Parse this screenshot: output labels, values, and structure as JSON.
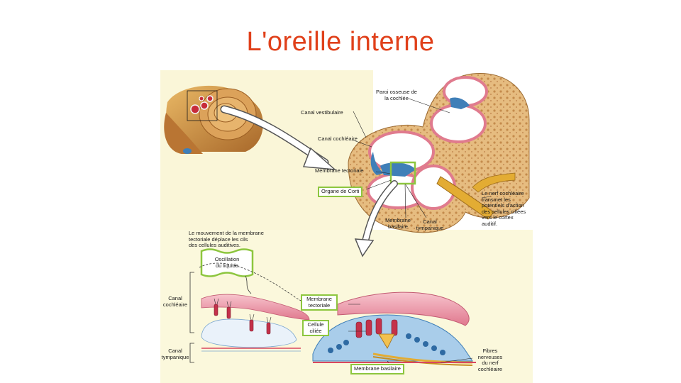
{
  "slide": {
    "title": "L'oreille interne"
  },
  "labels": {
    "paroi_osseuse": "Paroi osseuse de\nla cochlée",
    "canal_vestibulaire": "Canal vestibulaire",
    "canal_cochleaire_top": "Canal cochléaire",
    "membrane_tectoriale_top": "Membrane tectoriale",
    "organe_de_corti": "Organe de Corti",
    "membrane_basilaire_top": "Membrane\nbasilaire",
    "canal_tympanique_top": "Canal\ntympanique",
    "nerf_cochleaire": "Le nerf cochléaire\ntransmet les\npotentiels d'action\ndes cellules ciliées\nvers le cortex\nauditif.",
    "mouvement": "Le mouvement de la membrane\ntectoriale déplace les cils\ndes cellules auditives.",
    "oscillation": "Oscillation\ndu liquide",
    "canal_cochleaire_bottom": "Canal\ncochléaire",
    "canal_tympanique_bottom": "Canal\ntympanique",
    "membrane_tectoriale_bottom": "Membrane\ntectoriale",
    "cellule_ciliee": "Cellule\nciliée",
    "fibres_nerveuses": "Fibres\nnerveuses\ndu nerf\ncochléaire",
    "membrane_basilaire_bottom": "Membrane basilaire"
  },
  "colors": {
    "title": "#e0401a",
    "highlight_box": "#8dc63f",
    "bone": "#e2b878",
    "membrane_pink": "#f0a6b4",
    "cell_blue": "#4a8fc6",
    "background_yellow": "#faf5cf"
  }
}
